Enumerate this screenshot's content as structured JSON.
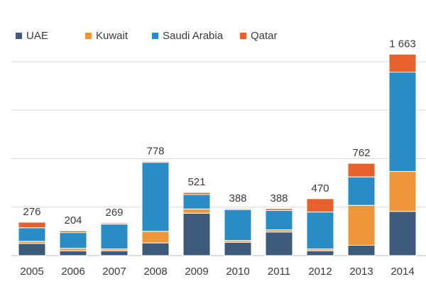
{
  "chart_data": {
    "type": "stacked_bar",
    "categories": [
      "2005",
      "2006",
      "2007",
      "2008",
      "2009",
      "2010",
      "2011",
      "2012",
      "2013",
      "2014"
    ],
    "series": [
      {
        "name": "UAE",
        "color": "#3d5a7a",
        "values": [
          100,
          40,
          40,
          105,
          350,
          110,
          195,
          40,
          85,
          365
        ]
      },
      {
        "name": "Kuwait",
        "color": "#f0963a",
        "values": [
          18,
          20,
          15,
          95,
          35,
          15,
          18,
          15,
          330,
          330
        ]
      },
      {
        "name": "Saudi Arabia",
        "color": "#2a8cc4",
        "values": [
          112,
          130,
          205,
          570,
          120,
          255,
          160,
          305,
          235,
          820
        ]
      },
      {
        "name": "Qatar",
        "color": "#e8612c",
        "values": [
          46,
          14,
          9,
          8,
          16,
          8,
          15,
          110,
          112,
          148
        ]
      }
    ],
    "totals": [
      276,
      204,
      269,
      778,
      521,
      388,
      388,
      470,
      762,
      1663
    ],
    "total_labels": [
      "276",
      "204",
      "269",
      "778",
      "521",
      "388",
      "388",
      "470",
      "762",
      "1 663"
    ],
    "ylim": [
      0,
      1700
    ],
    "yticks": [
      0,
      400,
      800,
      1200,
      1600
    ],
    "grid": true,
    "legend": "top-left"
  }
}
